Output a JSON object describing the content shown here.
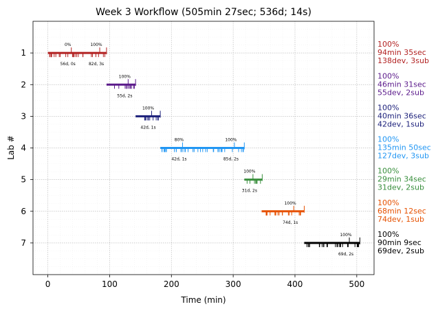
{
  "chart_data": {
    "type": "timeline",
    "title": "Week 3 Workflow (505min 27sec; 536d; 14s)",
    "xlabel": "Time (min)",
    "ylabel": "Lab #",
    "xlim": [
      -24,
      528
    ],
    "ylim": [
      8,
      0
    ],
    "xticks": [
      0,
      100,
      200,
      300,
      400,
      500
    ],
    "yticks": [
      1,
      2,
      3,
      4,
      5,
      6,
      7
    ],
    "grid": true,
    "labs": [
      {
        "lab": 1,
        "color": "#b22222",
        "start": 0,
        "end": 95,
        "checkpoints": [
          {
            "x": 38,
            "label": "0%",
            "detail": "56d, 0s"
          },
          {
            "x": 84,
            "label": "100%",
            "detail": "82d, 3s"
          }
        ],
        "summary": [
          "100%",
          "94min 35sec",
          "138dev, 3sub"
        ]
      },
      {
        "lab": 2,
        "color": "#5b1a8b",
        "start": 95,
        "end": 142,
        "checkpoints": [
          {
            "x": 130,
            "label": "100%",
            "detail": "55d, 2s"
          }
        ],
        "summary": [
          "100%",
          "46min 31sec",
          "55dev, 2sub"
        ]
      },
      {
        "lab": 3,
        "color": "#1b1f7a",
        "start": 142,
        "end": 182,
        "checkpoints": [
          {
            "x": 168,
            "label": "100%",
            "detail": "42d, 1s"
          }
        ],
        "summary": [
          "100%",
          "40min 36sec",
          "42dev, 1sub"
        ]
      },
      {
        "lab": 4,
        "color": "#2196f3",
        "start": 182,
        "end": 318,
        "checkpoints": [
          {
            "x": 218,
            "label": "80%",
            "detail": "42d, 1s"
          },
          {
            "x": 302,
            "label": "100%",
            "detail": "85d, 2s"
          }
        ],
        "summary": [
          "100%",
          "135min 50sec",
          "127dev, 3sub"
        ]
      },
      {
        "lab": 5,
        "color": "#388e3c",
        "start": 318,
        "end": 347,
        "checkpoints": [
          {
            "x": 332,
            "label": "100%",
            "detail": "31d, 2s"
          }
        ],
        "summary": [
          "100%",
          "29min 34sec",
          "31dev, 2sub"
        ]
      },
      {
        "lab": 6,
        "color": "#e65100",
        "start": 346,
        "end": 415,
        "checkpoints": [
          {
            "x": 398,
            "label": "100%",
            "detail": "74d, 1s"
          }
        ],
        "summary": [
          "100%",
          "68min 12sec",
          "74dev, 1sub"
        ]
      },
      {
        "lab": 7,
        "color": "#000000",
        "start": 415,
        "end": 505,
        "checkpoints": [
          {
            "x": 488,
            "label": "100%",
            "detail": "69d, 2s"
          }
        ],
        "summary": [
          "100%",
          "90min 9sec",
          "69dev, 2sub"
        ]
      }
    ]
  }
}
